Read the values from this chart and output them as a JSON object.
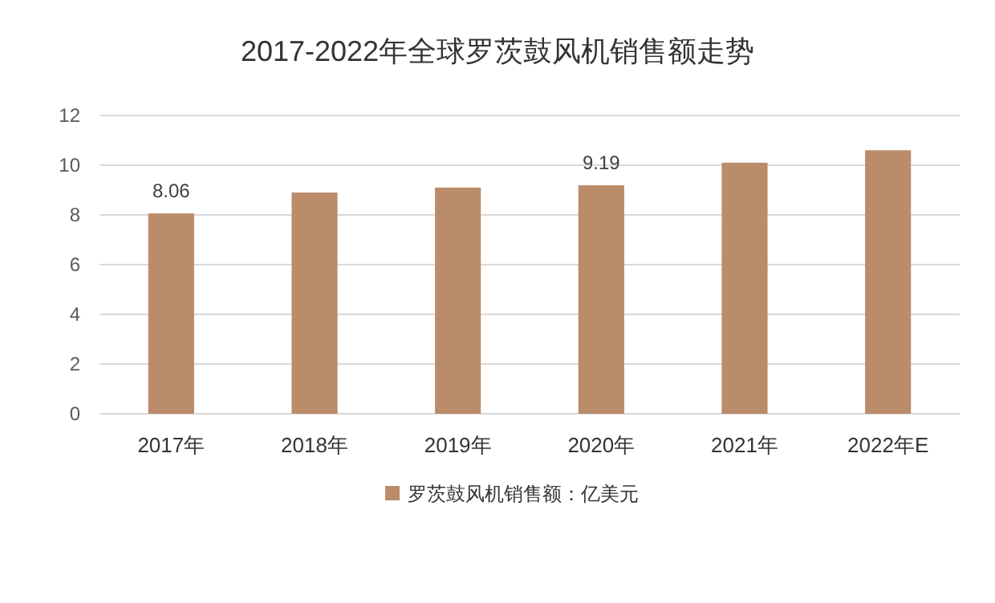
{
  "chart_data": {
    "type": "bar",
    "title": "2017-2022年全球罗茨鼓风机销售额走势",
    "categories": [
      "2017年",
      "2018年",
      "2019年",
      "2020年",
      "2021年",
      "2022年E"
    ],
    "series": [
      {
        "name": "罗茨鼓风机销售额：亿美元",
        "color": "#bb8c69",
        "values": [
          8.06,
          8.9,
          9.1,
          9.19,
          10.1,
          10.6
        ],
        "value_labels": [
          "8.06",
          null,
          null,
          "9.19",
          null,
          null
        ]
      }
    ],
    "ylim": [
      0,
      12
    ],
    "yticks": [
      0,
      2,
      4,
      6,
      8,
      10,
      12
    ],
    "grid": "y",
    "legend": "bottom"
  }
}
